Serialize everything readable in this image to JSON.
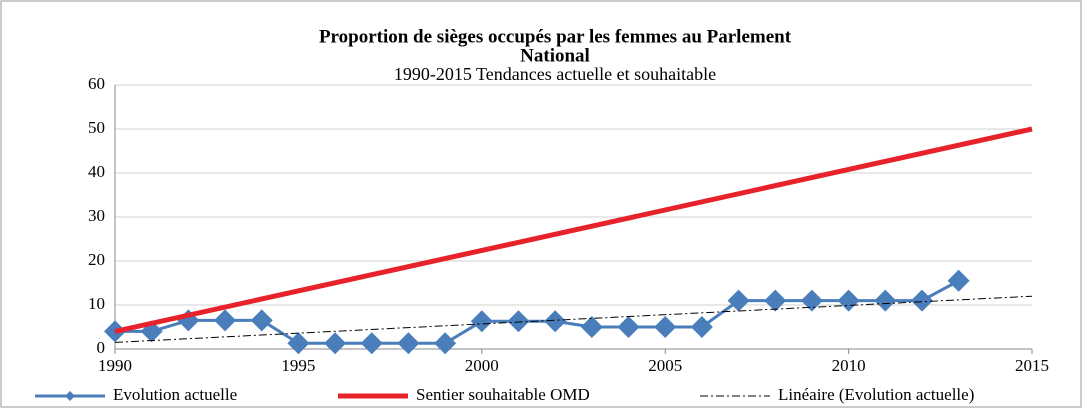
{
  "chart_data": {
    "type": "line",
    "title": [
      "Proportion  de sièges occupés par les femmes au Parlement",
      "National"
    ],
    "subtitle": "1990-2015  Tendances actuelle et souhaitable",
    "xlim": [
      1990,
      2015
    ],
    "xticks": [
      1990,
      1995,
      2000,
      2005,
      2010,
      2015
    ],
    "ylim": [
      0,
      60
    ],
    "yticks": [
      0,
      10,
      20,
      30,
      40,
      50,
      60
    ],
    "grid": true,
    "legend": "bottom",
    "series": [
      {
        "name": "Evolution actuelle",
        "color": "#4a7ebb",
        "style": "markers",
        "x": [
          1990,
          1991,
          1992,
          1993,
          1994,
          1995,
          1996,
          1997,
          1998,
          1999,
          2000,
          2001,
          2002,
          2003,
          2004,
          2005,
          2006,
          2007,
          2008,
          2009,
          2010,
          2011,
          2012,
          2013
        ],
        "values": [
          4,
          4,
          6.5,
          6.5,
          6.5,
          1.3,
          1.3,
          1.3,
          1.3,
          1.3,
          6.3,
          6.3,
          6.3,
          5,
          5,
          5,
          5,
          11,
          11,
          11,
          11,
          11,
          11,
          15.5
        ]
      },
      {
        "name": "Sentier souhaitable OMD",
        "color": "#e8222a",
        "style": "thick",
        "x": [
          1990,
          2015
        ],
        "values": [
          4,
          50
        ]
      },
      {
        "name": "Linéaire (Evolution actuelle)",
        "color": "#000000",
        "style": "dashdot",
        "x": [
          1990,
          2015
        ],
        "values": [
          1.5,
          12
        ]
      }
    ]
  }
}
